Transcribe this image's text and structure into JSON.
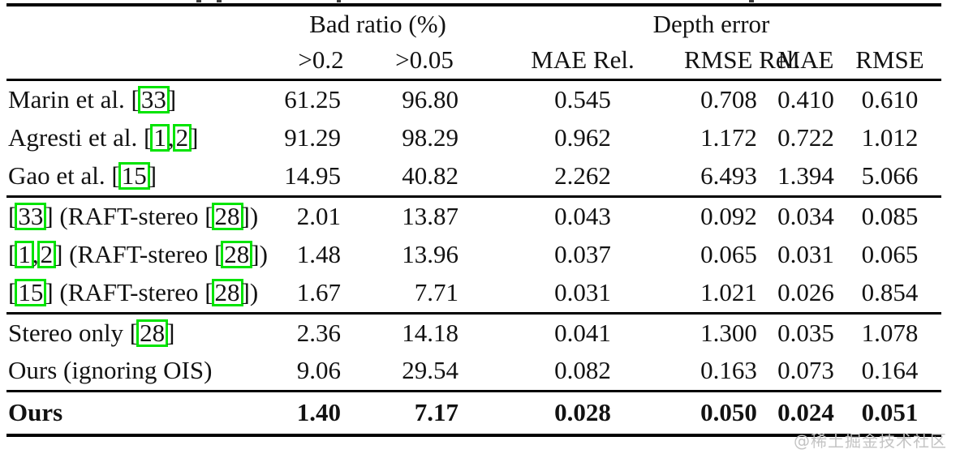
{
  "colors": {
    "citation_box": "#00e400",
    "watermark": "#c4c4c4",
    "text": "#121212"
  },
  "header": {
    "group_bad_ratio": "Bad ratio (%)",
    "group_depth_error": "Depth error",
    "columns": [
      ">0.2",
      ">0.05",
      "MAE Rel.",
      "RMSE Rel.",
      "MAE",
      "RMSE"
    ]
  },
  "sections": [
    {
      "bold": false,
      "rows": [
        {
          "label": [
            "Marin et al. [",
            {
              "cite": "33"
            },
            "]"
          ],
          "values": [
            "61.25",
            "96.80",
            "0.545",
            "0.708",
            "0.410",
            "0.610"
          ]
        },
        {
          "label": [
            "Agresti et al. [",
            {
              "cite": "1"
            },
            ",",
            {
              "cite": "2"
            },
            "]"
          ],
          "values": [
            "91.29",
            "98.29",
            "0.962",
            "1.172",
            "0.722",
            "1.012"
          ]
        },
        {
          "label": [
            "Gao et al. [",
            {
              "cite": "15"
            },
            "]"
          ],
          "values": [
            "14.95",
            "40.82",
            "2.262",
            "6.493",
            "1.394",
            "5.066"
          ]
        }
      ]
    },
    {
      "bold": false,
      "rows": [
        {
          "label": [
            "[",
            {
              "cite": "33"
            },
            "] (RAFT-stereo [",
            {
              "cite": "28"
            },
            "])"
          ],
          "values": [
            "2.01",
            "13.87",
            "0.043",
            "0.092",
            "0.034",
            "0.085"
          ]
        },
        {
          "label": [
            "[",
            {
              "cite": "1"
            },
            ",",
            {
              "cite": "2"
            },
            "] (RAFT-stereo [",
            {
              "cite": "28"
            },
            "])"
          ],
          "values": [
            "1.48",
            "13.96",
            "0.037",
            "0.065",
            "0.031",
            "0.065"
          ]
        },
        {
          "label": [
            "[",
            {
              "cite": "15"
            },
            "] (RAFT-stereo [",
            {
              "cite": "28"
            },
            "])"
          ],
          "values": [
            "1.67",
            "7.71",
            "0.031",
            "1.021",
            "0.026",
            "0.854"
          ]
        }
      ]
    },
    {
      "bold": false,
      "rows": [
        {
          "label": [
            "Stereo only [",
            {
              "cite": "28"
            },
            "]"
          ],
          "values": [
            "2.36",
            "14.18",
            "0.041",
            "1.300",
            "0.035",
            "1.078"
          ]
        },
        {
          "label": [
            "Ours (ignoring OIS)"
          ],
          "values": [
            "9.06",
            "29.54",
            "0.082",
            "0.163",
            "0.073",
            "0.164"
          ]
        }
      ]
    },
    {
      "bold": true,
      "rows": [
        {
          "label": [
            "Ours"
          ],
          "values": [
            "1.40",
            "7.17",
            "0.028",
            "0.050",
            "0.024",
            "0.051"
          ]
        }
      ]
    }
  ],
  "watermark": "@稀土掘金技术社区"
}
